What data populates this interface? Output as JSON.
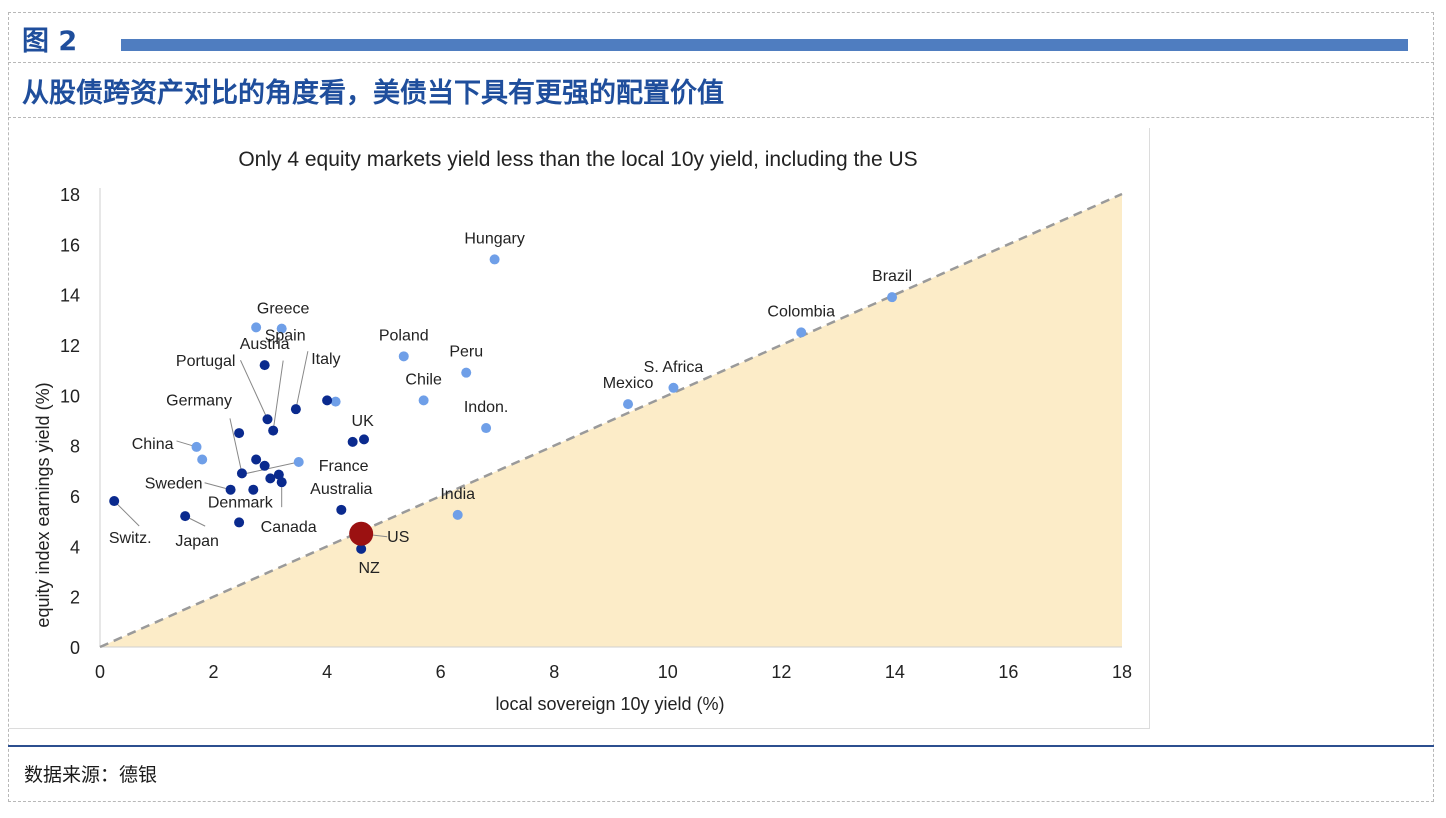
{
  "header": {
    "figure_label": "图 2",
    "figure_title": "从股债跨资产对比的角度看，美债当下具有更强的配置价值"
  },
  "footer": {
    "source": "数据来源：德银"
  },
  "colors": {
    "accent": "#1f4e9c",
    "bar": "#4f7dc0",
    "dark_point": "#0a2a8e",
    "light_point": "#6f9fe8",
    "us_point": "#9b1111",
    "fill": "#fcecc8",
    "diagonal": "#9a9a9a"
  },
  "chart_data": {
    "type": "scatter",
    "title": "Only 4 equity markets yield less than the local 10y yield, including the US",
    "xlabel": "local sovereign 10y yield (%)",
    "ylabel": "equity index earnings yield (%)",
    "xlim": [
      0,
      18
    ],
    "ylim": [
      0,
      18
    ],
    "x_ticks": [
      "0",
      "2",
      "4",
      "6",
      "8",
      "10",
      "12",
      "14",
      "16",
      "18"
    ],
    "y_ticks": [
      "0",
      "2",
      "4",
      "6",
      "8",
      "10",
      "12",
      "14",
      "16",
      "18"
    ],
    "shaded_region": "below y = x line",
    "diagonal_line": {
      "style": "dashed",
      "from": [
        0,
        0
      ],
      "to": [
        18,
        18
      ]
    },
    "points": [
      {
        "label": "Hungary",
        "x": 6.95,
        "y": 15.4,
        "color": "light"
      },
      {
        "label": "Brazil",
        "x": 13.95,
        "y": 13.9,
        "color": "light"
      },
      {
        "label": "Colombia",
        "x": 12.35,
        "y": 12.5,
        "color": "light"
      },
      {
        "label": "S. Africa",
        "x": 10.1,
        "y": 10.3,
        "color": "light"
      },
      {
        "label": "Mexico",
        "x": 9.3,
        "y": 9.65,
        "color": "light"
      },
      {
        "label": "Poland",
        "x": 5.35,
        "y": 11.55,
        "color": "light"
      },
      {
        "label": "Peru",
        "x": 6.45,
        "y": 10.9,
        "color": "light"
      },
      {
        "label": "Chile",
        "x": 5.7,
        "y": 9.8,
        "color": "light"
      },
      {
        "label": "Indon.",
        "x": 6.8,
        "y": 8.7,
        "color": "light"
      },
      {
        "label": "India",
        "x": 6.3,
        "y": 5.25,
        "color": "light"
      },
      {
        "label": "Greece",
        "x": 2.75,
        "y": 12.7,
        "color": "light"
      },
      {
        "label": "",
        "x": 3.2,
        "y": 12.65,
        "color": "light"
      },
      {
        "label": "China",
        "x": 1.7,
        "y": 7.95,
        "color": "light"
      },
      {
        "label": "",
        "x": 1.8,
        "y": 7.45,
        "color": "light"
      },
      {
        "label": "France",
        "x": 3.5,
        "y": 7.35,
        "color": "light"
      },
      {
        "label": "",
        "x": 4.15,
        "y": 9.75,
        "color": "light"
      },
      {
        "label": "Austria",
        "x": 2.9,
        "y": 11.2,
        "color": "dark"
      },
      {
        "label": "Portugal",
        "x": 2.95,
        "y": 9.05,
        "color": "dark"
      },
      {
        "label": "Spain",
        "x": 3.05,
        "y": 8.6,
        "color": "dark"
      },
      {
        "label": "Italy",
        "x": 3.45,
        "y": 9.45,
        "color": "dark"
      },
      {
        "label": "",
        "x": 4.0,
        "y": 9.8,
        "color": "dark"
      },
      {
        "label": "UK",
        "x": 4.45,
        "y": 8.15,
        "color": "dark"
      },
      {
        "label": "",
        "x": 4.65,
        "y": 8.25,
        "color": "dark"
      },
      {
        "label": "",
        "x": 2.45,
        "y": 8.5,
        "color": "dark"
      },
      {
        "label": "Germany",
        "x": 2.5,
        "y": 6.9,
        "color": "dark"
      },
      {
        "label": "",
        "x": 2.75,
        "y": 7.45,
        "color": "dark"
      },
      {
        "label": "",
        "x": 2.9,
        "y": 7.2,
        "color": "dark"
      },
      {
        "label": "",
        "x": 3.15,
        "y": 6.85,
        "color": "dark"
      },
      {
        "label": "",
        "x": 3.0,
        "y": 6.7,
        "color": "dark"
      },
      {
        "label": "Canada",
        "x": 3.2,
        "y": 6.55,
        "color": "dark"
      },
      {
        "label": "Sweden",
        "x": 2.3,
        "y": 6.25,
        "color": "dark"
      },
      {
        "label": "Denmark",
        "x": 2.7,
        "y": 6.25,
        "color": "dark"
      },
      {
        "label": "Australia",
        "x": 4.25,
        "y": 5.45,
        "color": "dark"
      },
      {
        "label": "Switz.",
        "x": 0.25,
        "y": 5.8,
        "color": "dark"
      },
      {
        "label": "Japan",
        "x": 1.5,
        "y": 5.2,
        "color": "dark"
      },
      {
        "label": "",
        "x": 2.45,
        "y": 4.95,
        "color": "dark"
      },
      {
        "label": "NZ",
        "x": 4.6,
        "y": 3.9,
        "color": "dark"
      },
      {
        "label": "US",
        "x": 4.6,
        "y": 4.5,
        "color": "us"
      }
    ]
  }
}
